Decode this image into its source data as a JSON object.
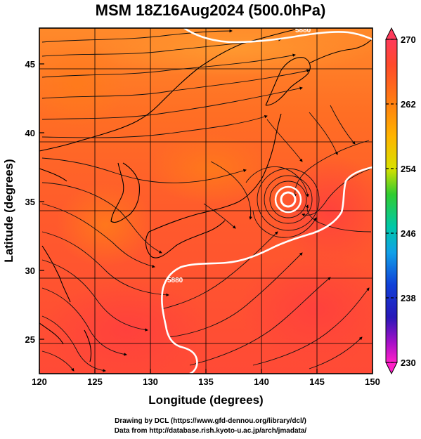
{
  "title": "MSM 18Z16Aug2024 (500.0hPa)",
  "chart_data": {
    "type": "map",
    "xlabel": "Longitude (degrees)",
    "ylabel": "Latitude  (degrees)",
    "xlim": [
      120,
      150
    ],
    "ylim": [
      22.5,
      47.6
    ],
    "x_ticks": [
      "120",
      "125",
      "130",
      "135",
      "140",
      "145",
      "150"
    ],
    "y_ticks": [
      "25",
      "30",
      "35",
      "40",
      "45"
    ],
    "colorbar": {
      "min": 230,
      "max": 270,
      "tick_labels": [
        "270",
        "262",
        "254",
        "246",
        "238",
        "230"
      ],
      "colors": [
        "#ff2a6e",
        "#ff4a30",
        "#ff7a10",
        "#ffb000",
        "#d8e000",
        "#40d040",
        "#00c8a0",
        "#10a0e0",
        "#1040d0",
        "#2010b0",
        "#a010c0",
        "#ff20c0"
      ]
    },
    "contour_labels": [
      "5880",
      "5880"
    ],
    "field_colors": [
      "#ff8a2a",
      "#ff7026",
      "#ff5a2c",
      "#ff4a36",
      "#ff5e40"
    ],
    "typhoon_center": {
      "lon": 142.5,
      "lat": 35.9
    }
  },
  "credits": {
    "line1": "Drawing by DCL (https://www.gfd-dennou.org/library/dcl/)",
    "line2": "Data from http://database.rish.kyoto-u.ac.jp/arch/jmadata/"
  }
}
